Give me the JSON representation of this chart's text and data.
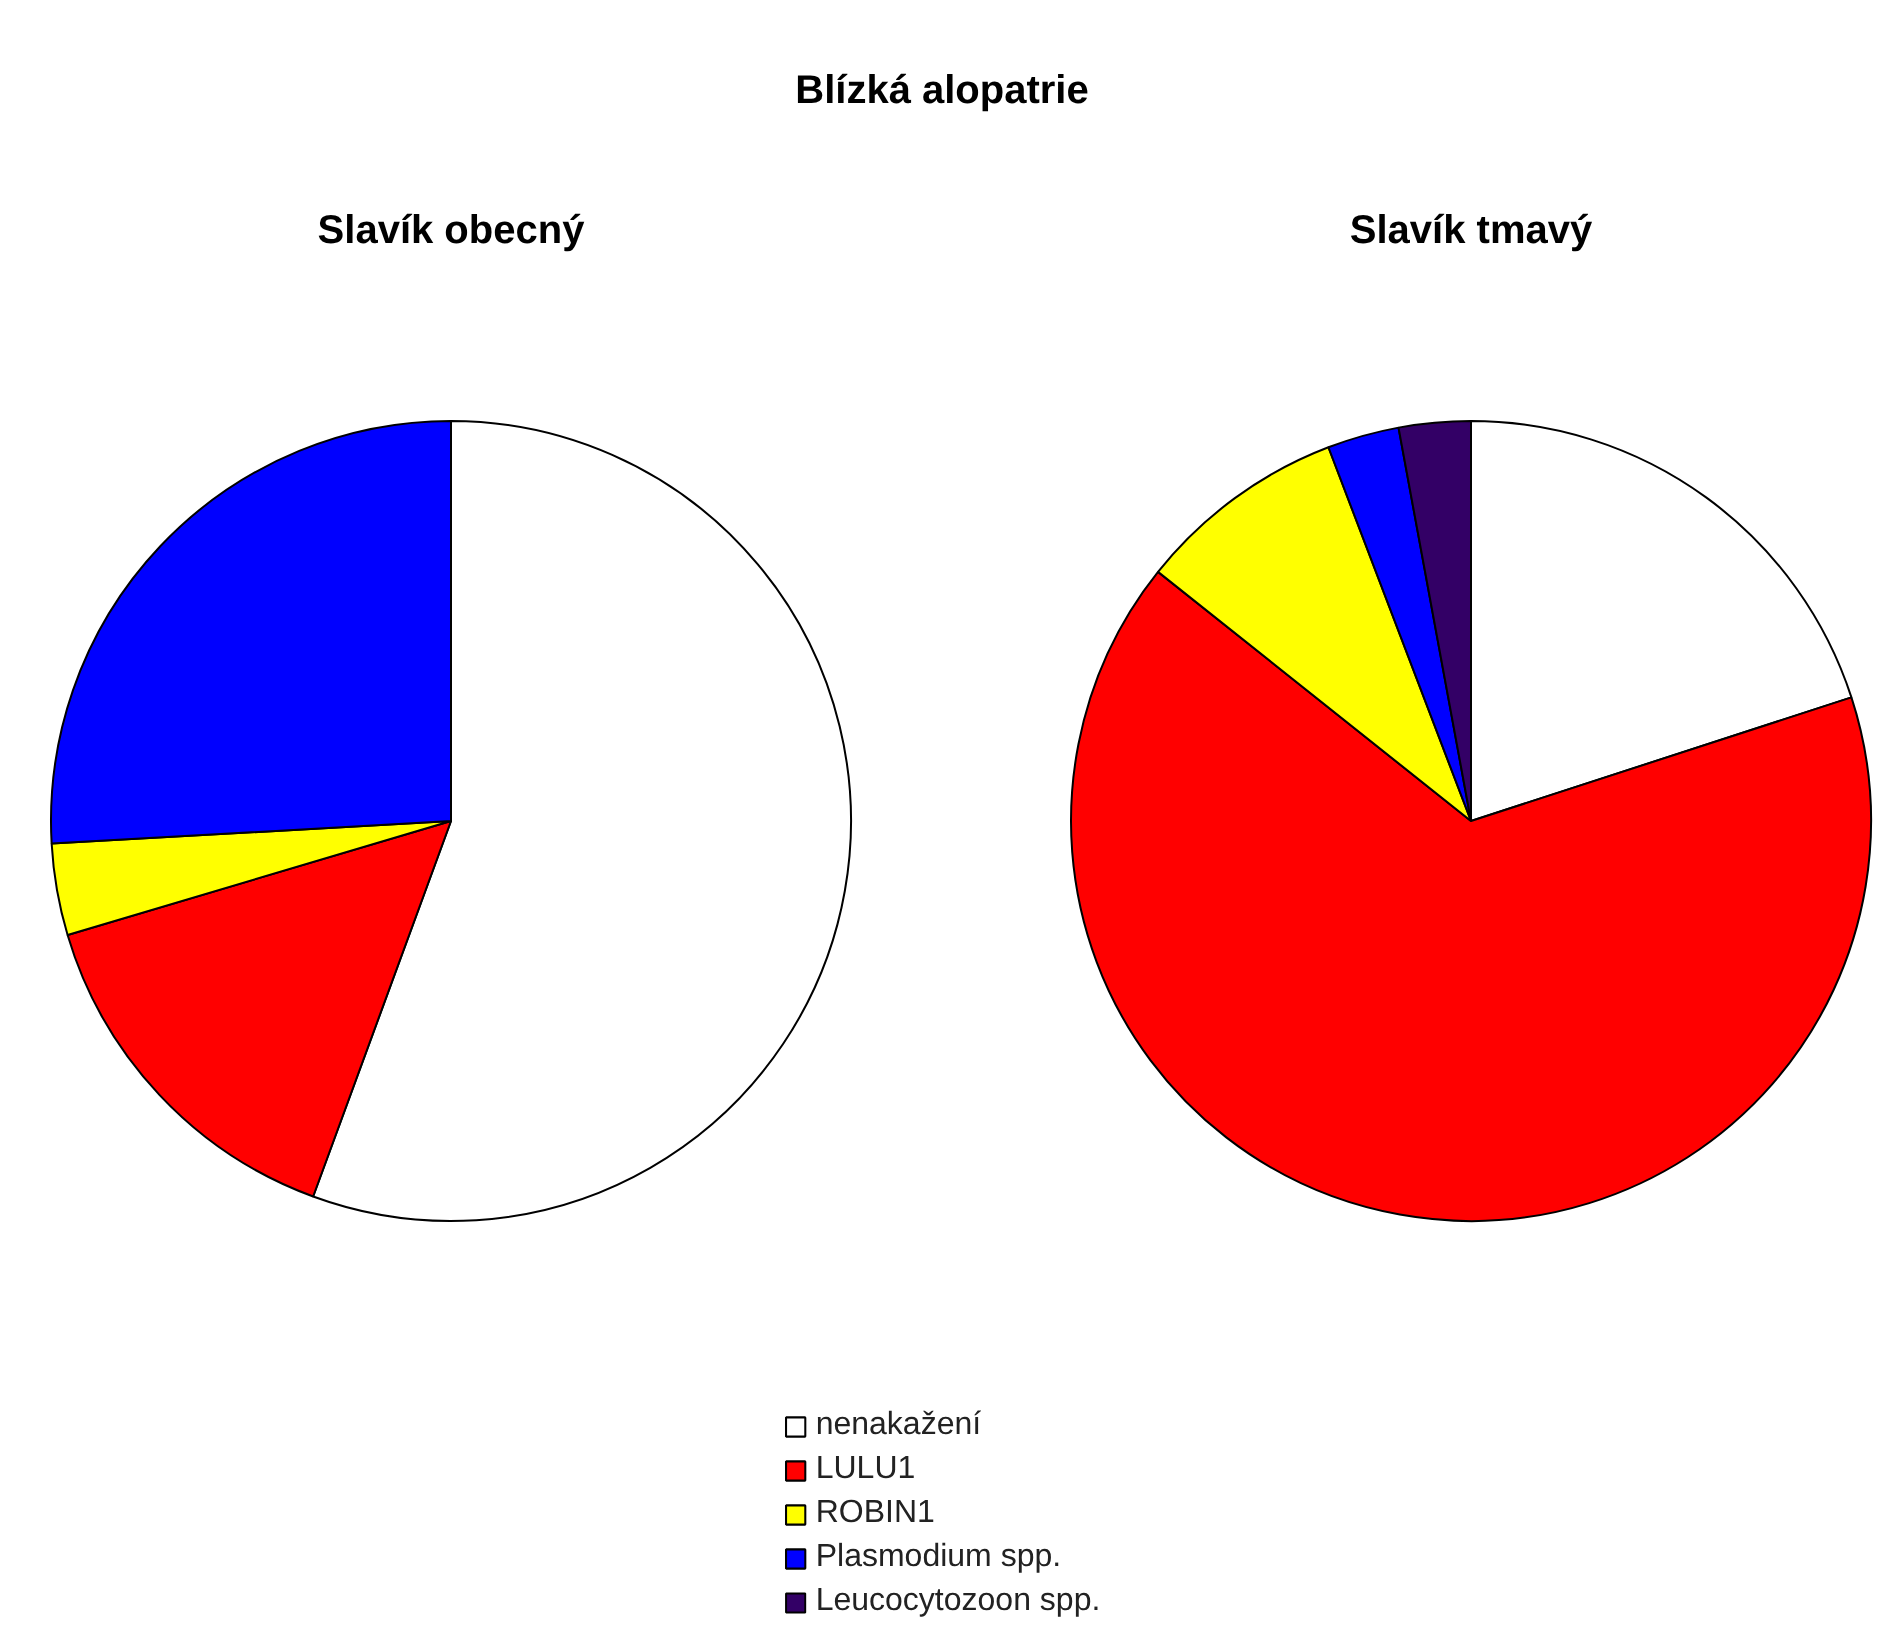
{
  "chart_data": {
    "type": "pie",
    "title": "Blízká alopatrie",
    "legend": "bottom",
    "categories": [
      "nenakažení",
      "LULU1",
      "ROBIN1",
      "Plasmodium spp.",
      "Leucocytozoon spp."
    ],
    "colors": [
      "#ffffff",
      "#ff0000",
      "#ffff00",
      "#0000ff",
      "#330066"
    ],
    "series": [
      {
        "name": "Slavík obecný",
        "values": [
          55.6,
          14.8,
          3.7,
          25.9,
          null
        ]
      },
      {
        "name": "Slavík tmavý",
        "values": [
          20.0,
          65.7,
          8.5,
          2.9,
          2.9
        ]
      }
    ]
  }
}
